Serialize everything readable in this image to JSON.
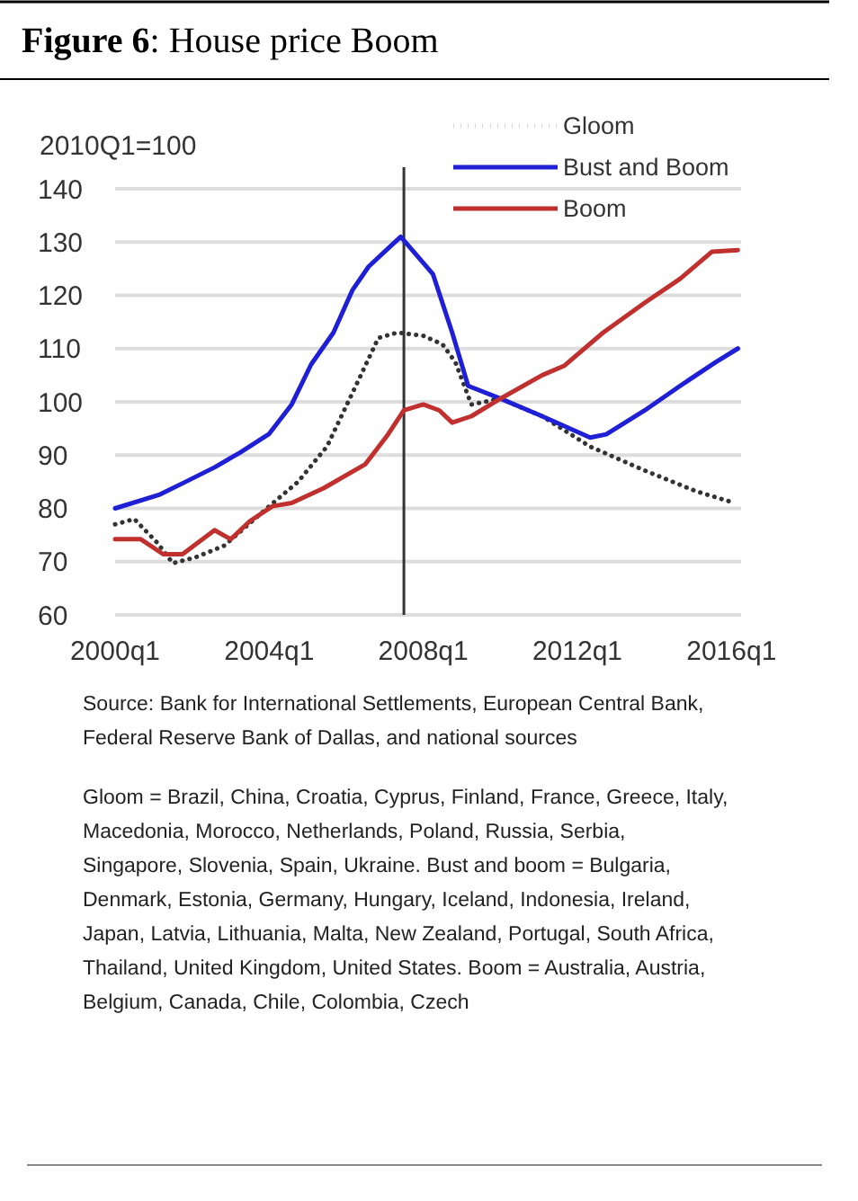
{
  "chart_data": {
    "type": "line",
    "title": "Figure 6: House price Boom",
    "ylabel": "2010Q1=100",
    "xlim": [
      "2000-01",
      "2016-04"
    ],
    "xticks": [
      {
        "value": "2000-01",
        "label": "2000q1"
      },
      {
        "value": "2004-01",
        "label": "2004q1"
      },
      {
        "value": "2008-01",
        "label": "2008q1"
      },
      {
        "value": "2012-01",
        "label": "2012q1"
      },
      {
        "value": "2016-01",
        "label": "2016q1"
      }
    ],
    "ylim": [
      60,
      140
    ],
    "yticks": [
      60,
      70,
      80,
      90,
      100,
      110,
      120,
      130,
      140
    ],
    "grid": "y",
    "legend": "top right",
    "ref_lines": [
      {
        "axis": "x",
        "value": "2007-07",
        "color": "#333333"
      }
    ],
    "series": [
      {
        "name": "Gloom",
        "color": "#333333",
        "line_style": "dotted",
        "x": [
          "2000-01",
          "2000-07",
          "2001-02",
          "2001-07",
          "2002-02",
          "2002-11",
          "2004-01",
          "2004-10",
          "2005-07",
          "2006-04",
          "2006-11",
          "2007-05",
          "2008-01",
          "2008-07",
          "2008-11",
          "2009-04",
          "2010-01",
          "2011-02",
          "2012-05",
          "2013-10",
          "2015-02",
          "2016-02"
        ],
        "values": [
          77,
          78,
          73.6,
          69.7,
          70.8,
          73,
          80.4,
          85,
          91.6,
          103,
          112,
          113,
          112.4,
          110.8,
          107.4,
          99.5,
          100.6,
          97.3,
          91.6,
          87.1,
          83.2,
          81
        ]
      },
      {
        "name": "Bust and Boom",
        "color": "#1f1fd6",
        "line_style": "solid",
        "x": [
          "2000-01",
          "2001-03",
          "2001-11",
          "2002-08",
          "2003-04",
          "2004-01",
          "2004-08",
          "2005-02",
          "2005-09",
          "2006-03",
          "2006-08",
          "2007-02",
          "2007-06",
          "2008-04",
          "2008-10",
          "2009-03",
          "2010-01",
          "2011-02",
          "2012-05",
          "2012-10",
          "2013-10",
          "2014-09",
          "2015-08",
          "2016-03"
        ],
        "values": [
          80,
          82.6,
          85,
          87.7,
          90.5,
          94,
          99.5,
          107,
          113,
          121,
          125.4,
          128.8,
          131,
          124,
          113,
          103,
          100.6,
          97.3,
          93.3,
          93.9,
          98.4,
          103,
          107.4,
          110
        ]
      },
      {
        "name": "Boom",
        "color": "#c0302e",
        "line_style": "solid",
        "x": [
          "2000-01",
          "2000-09",
          "2001-04",
          "2001-10",
          "2002-08",
          "2003-01",
          "2003-07",
          "2004-02",
          "2004-08",
          "2005-06",
          "2006-07",
          "2007-02",
          "2007-07",
          "2008-01",
          "2008-06",
          "2008-10",
          "2009-04",
          "2010-01",
          "2011-02",
          "2011-09",
          "2012-09",
          "2013-10",
          "2014-09",
          "2015-07",
          "2016-03"
        ],
        "values": [
          74.2,
          74.2,
          71.4,
          71.4,
          75.9,
          74.2,
          77.6,
          80.4,
          81,
          83.8,
          88.3,
          93.9,
          98.4,
          99.5,
          98.4,
          96.1,
          97.3,
          100.6,
          105,
          106.8,
          113,
          118.6,
          123.1,
          128.2,
          128.5
        ]
      }
    ],
    "annotations": [
      "Source: Bank for International Settlements, European Central Bank, Federal Reserve Bank of Dallas, and national sources",
      "Gloom = Brazil, China, Croatia, Cyprus, Finland, France, Greece, Italy, Macedonia, Morocco, Netherlands, Poland,  Russia, Serbia, Singapore, Slovenia, Spain, Ukraine. Bust and boom = Bulgaria, Denmark, Estonia, Germany, Hungary, Iceland, Indonesia, Ireland, Japan, Latvia, Lithuania, Malta, New Zealand, Portugal, South Africa, Thailand, United Kingdom, United States. Boom = Australia, Austria, Belgium, Canada, Chile, Colombia, Czech"
    ]
  }
}
